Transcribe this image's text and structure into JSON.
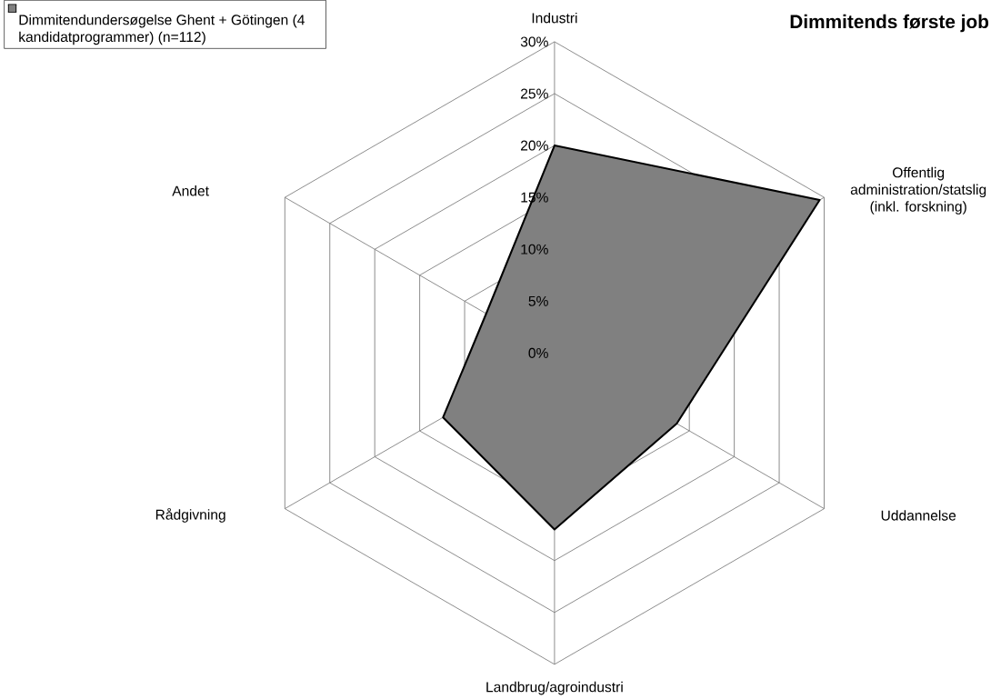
{
  "chart_data": {
    "type": "radar",
    "title": "Dimmitends første job",
    "categories": [
      "Industri",
      "Offentlig administration/statslig (inkl. forskning)",
      "Uddannelse",
      "Landbrug/agroindustri",
      "Rådgivning",
      "Andet"
    ],
    "series": [
      {
        "name": "Dimmitendundersøgelse Ghent + Götingen (4 kandidatprogrammer) (n=112)",
        "color": "#808080",
        "values": [
          20,
          29.5,
          13.6,
          17,
          12.4,
          7.6
        ]
      }
    ],
    "ylim": [
      0,
      30
    ],
    "yticks": [
      {
        "value": 0,
        "label": "0%"
      },
      {
        "value": 5,
        "label": "5%"
      },
      {
        "value": 10,
        "label": "10%"
      },
      {
        "value": 15,
        "label": "15%"
      },
      {
        "value": 20,
        "label": "20%"
      },
      {
        "value": 25,
        "label": "25%"
      },
      {
        "value": 30,
        "label": "30%"
      }
    ],
    "grid": true,
    "legend": "top left"
  }
}
